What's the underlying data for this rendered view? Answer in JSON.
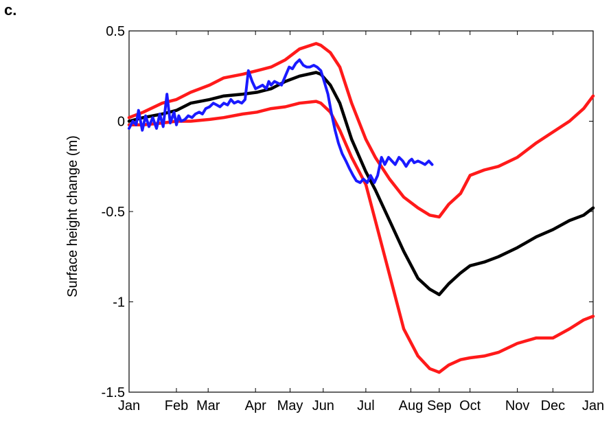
{
  "panel_label": "c.",
  "chart_data": {
    "type": "line",
    "title": "",
    "xlabel": "",
    "ylabel": "Surface height change (m)",
    "x_tick_labels": [
      "Jan",
      "Feb",
      "Mar",
      "Apr",
      "May",
      "Jun",
      "Jul",
      "Aug",
      "Sep",
      "Oct",
      "Nov",
      "Dec",
      "Jan"
    ],
    "x_tick_months": [
      0,
      1,
      1.67,
      2.67,
      3.4,
      4.1,
      5,
      5.95,
      6.55,
      7.2,
      8.2,
      8.95,
      9.8
    ],
    "xlim": [
      0,
      9.8
    ],
    "y_tick_labels": [
      "0.5",
      "0",
      "-0.5",
      "-1",
      "-1.5"
    ],
    "y_tick_values": [
      0.5,
      0,
      -0.5,
      -1,
      -1.5
    ],
    "ylim": [
      -1.5,
      0.5
    ],
    "grid": false,
    "colors": {
      "upper": "#ff1a1a",
      "mean": "#000000",
      "lower": "#ff1a1a",
      "observed": "#1a1aff"
    },
    "series": [
      {
        "color": "upper",
        "x": [
          0,
          0.3,
          0.7,
          1.0,
          1.3,
          1.7,
          2.0,
          2.4,
          2.7,
          3.0,
          3.3,
          3.6,
          3.95,
          4.05,
          4.25,
          4.45,
          4.7,
          5.0,
          5.2,
          5.5,
          5.8,
          6.1,
          6.35,
          6.55,
          6.75,
          7.0,
          7.2,
          7.5,
          7.8,
          8.2,
          8.6,
          8.95,
          9.3,
          9.6,
          9.8
        ],
        "y": [
          0.02,
          0.05,
          0.1,
          0.12,
          0.16,
          0.2,
          0.24,
          0.26,
          0.28,
          0.3,
          0.34,
          0.4,
          0.43,
          0.42,
          0.38,
          0.3,
          0.1,
          -0.1,
          -0.2,
          -0.32,
          -0.42,
          -0.48,
          -0.52,
          -0.53,
          -0.46,
          -0.4,
          -0.3,
          -0.27,
          -0.25,
          -0.2,
          -0.12,
          -0.06,
          0.0,
          0.07,
          0.14
        ]
      },
      {
        "color": "mean",
        "x": [
          0,
          0.3,
          0.7,
          1.0,
          1.3,
          1.7,
          2.0,
          2.4,
          2.7,
          3.0,
          3.3,
          3.6,
          3.95,
          4.05,
          4.25,
          4.45,
          4.7,
          5.0,
          5.2,
          5.5,
          5.8,
          6.1,
          6.35,
          6.55,
          6.75,
          7.0,
          7.2,
          7.5,
          7.8,
          8.2,
          8.6,
          8.95,
          9.3,
          9.6,
          9.8
        ],
        "y": [
          0.0,
          0.02,
          0.04,
          0.06,
          0.1,
          0.12,
          0.14,
          0.15,
          0.16,
          0.18,
          0.22,
          0.25,
          0.27,
          0.26,
          0.2,
          0.1,
          -0.1,
          -0.28,
          -0.38,
          -0.55,
          -0.72,
          -0.87,
          -0.93,
          -0.96,
          -0.9,
          -0.84,
          -0.8,
          -0.78,
          -0.75,
          -0.7,
          -0.64,
          -0.6,
          -0.55,
          -0.52,
          -0.48
        ]
      },
      {
        "color": "lower",
        "x": [
          0,
          0.3,
          0.7,
          1.0,
          1.3,
          1.7,
          2.0,
          2.4,
          2.7,
          3.0,
          3.3,
          3.6,
          3.95,
          4.05,
          4.25,
          4.45,
          4.7,
          5.0,
          5.2,
          5.5,
          5.8,
          6.1,
          6.35,
          6.55,
          6.75,
          7.0,
          7.2,
          7.5,
          7.8,
          8.2,
          8.6,
          8.95,
          9.3,
          9.6,
          9.8
        ],
        "y": [
          -0.02,
          -0.02,
          -0.01,
          0.0,
          0.0,
          0.01,
          0.02,
          0.04,
          0.05,
          0.07,
          0.08,
          0.1,
          0.11,
          0.1,
          0.05,
          -0.05,
          -0.2,
          -0.35,
          -0.55,
          -0.85,
          -1.15,
          -1.3,
          -1.37,
          -1.39,
          -1.35,
          -1.32,
          -1.31,
          -1.3,
          -1.28,
          -1.23,
          -1.2,
          -1.2,
          -1.15,
          -1.1,
          -1.08
        ]
      },
      {
        "color": "observed",
        "x": [
          0,
          0.08,
          0.15,
          0.2,
          0.28,
          0.35,
          0.42,
          0.5,
          0.58,
          0.65,
          0.72,
          0.8,
          0.87,
          0.95,
          1.0,
          1.05,
          1.1,
          1.18,
          1.25,
          1.33,
          1.4,
          1.48,
          1.55,
          1.62,
          1.7,
          1.78,
          1.85,
          1.92,
          2.0,
          2.08,
          2.15,
          2.22,
          2.3,
          2.38,
          2.45,
          2.52,
          2.6,
          2.67,
          2.75,
          2.82,
          2.9,
          2.95,
          3.0,
          3.07,
          3.15,
          3.22,
          3.3,
          3.38,
          3.45,
          3.52,
          3.6,
          3.68,
          3.75,
          3.82,
          3.9,
          3.97,
          4.05,
          4.12,
          4.2,
          4.27,
          4.35,
          4.42,
          4.5,
          4.58,
          4.65,
          4.73,
          4.8,
          4.88,
          4.95,
          5.03,
          5.1,
          5.18,
          5.25,
          5.33,
          5.4,
          5.48,
          5.55,
          5.62,
          5.7,
          5.78,
          5.85,
          5.92,
          5.97,
          6.02,
          6.1,
          6.18,
          6.25,
          6.33,
          6.4
        ],
        "y": [
          -0.04,
          0.0,
          -0.02,
          0.06,
          -0.05,
          0.03,
          -0.03,
          0.02,
          -0.04,
          0.04,
          -0.03,
          0.15,
          -0.01,
          0.05,
          -0.02,
          0.03,
          0.0,
          0.01,
          0.03,
          0.02,
          0.04,
          0.05,
          0.04,
          0.07,
          0.08,
          0.1,
          0.09,
          0.08,
          0.1,
          0.09,
          0.12,
          0.1,
          0.11,
          0.1,
          0.12,
          0.28,
          0.22,
          0.18,
          0.19,
          0.2,
          0.18,
          0.22,
          0.2,
          0.22,
          0.21,
          0.2,
          0.25,
          0.3,
          0.29,
          0.32,
          0.34,
          0.31,
          0.3,
          0.3,
          0.31,
          0.3,
          0.28,
          0.22,
          0.15,
          0.05,
          -0.05,
          -0.12,
          -0.18,
          -0.22,
          -0.26,
          -0.3,
          -0.33,
          -0.34,
          -0.32,
          -0.34,
          -0.3,
          -0.34,
          -0.3,
          -0.2,
          -0.24,
          -0.2,
          -0.22,
          -0.24,
          -0.2,
          -0.22,
          -0.25,
          -0.22,
          -0.21,
          -0.23,
          -0.22,
          -0.23,
          -0.24,
          -0.22,
          -0.24
        ]
      }
    ]
  }
}
